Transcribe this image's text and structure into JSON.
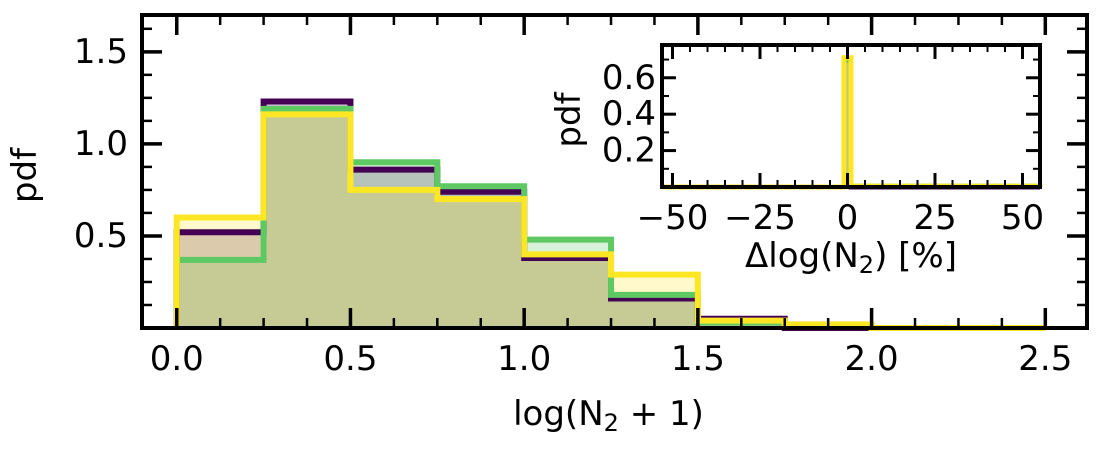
{
  "chart_data": [
    {
      "type": "bar",
      "histogram": true,
      "xlabel": "log(N",
      "xlabel_sub": "2",
      "xlabel_tail": " + 1)",
      "ylabel": "pdf",
      "xlim": [
        -0.1,
        2.62
      ],
      "ylim": [
        0,
        1.7
      ],
      "xticks": [
        "0.0",
        "0.5",
        "1.0",
        "1.5",
        "2.0",
        "2.5"
      ],
      "yticks": [
        "0.5",
        "1.0",
        "1.5"
      ],
      "bin_edges": [
        0,
        0.25,
        0.5,
        0.75,
        1.0,
        1.25,
        1.5,
        1.75,
        2.0,
        2.25,
        2.5
      ],
      "series": [
        {
          "color": "#440154",
          "values": [
            0.52,
            1.23,
            0.86,
            0.74,
            0.38,
            0.16,
            0.05,
            0.0,
            0.0,
            0.0
          ]
        },
        {
          "color": "#5ec962",
          "values": [
            0.37,
            1.19,
            0.9,
            0.77,
            0.48,
            0.18,
            0.03,
            0.01,
            0.0,
            0.0
          ]
        },
        {
          "color": "#fde725",
          "values": [
            0.6,
            1.16,
            0.75,
            0.7,
            0.4,
            0.29,
            0.04,
            0.02,
            0.0,
            0.0
          ]
        }
      ]
    },
    {
      "type": "bar",
      "histogram": true,
      "inset": true,
      "xlabel": "Δlog(N",
      "xlabel_sub": "2",
      "xlabel_tail": ") [%]",
      "ylabel": "pdf",
      "xlim": [
        -53,
        55
      ],
      "ylim": [
        0,
        0.78
      ],
      "xticks": [
        "−50",
        "−25",
        "0",
        "25",
        "50"
      ],
      "xtick_values": [
        -50,
        -25,
        0,
        25,
        50
      ],
      "yticks": [
        "0.2",
        "0.4",
        "0.6"
      ],
      "ytick_values": [
        0.2,
        0.4,
        0.6
      ],
      "bin_edges": [
        -53,
        -1,
        1,
        55
      ],
      "series": [
        {
          "color": "#440154",
          "values": [
            0.0,
            0.7,
            0.0
          ]
        },
        {
          "color": "#5ec962",
          "values": [
            0.0,
            0.7,
            0.005
          ]
        },
        {
          "color": "#fde725",
          "values": [
            0.0,
            0.71,
            0.005
          ]
        }
      ]
    }
  ]
}
